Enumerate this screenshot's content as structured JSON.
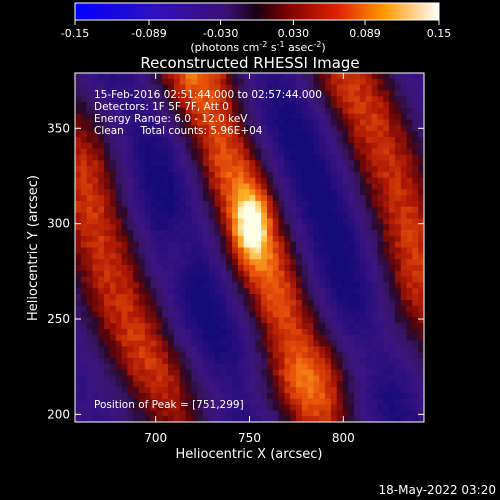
{
  "chart_data": {
    "type": "heatmap",
    "title": "Reconstructed RHESSI Image",
    "xlabel": "Heliocentric X (arcsec)",
    "ylabel": "Heliocentric Y (arcsec)",
    "xlim": [
      657,
      843
    ],
    "ylim": [
      196,
      379
    ],
    "x_ticks": [
      700,
      750,
      800
    ],
    "y_ticks": [
      200,
      250,
      300,
      350
    ],
    "colorbar": {
      "min": -0.15,
      "max": 0.15,
      "ticks": [
        "-0.15",
        "-0.089",
        "-0.030",
        "0.030",
        "0.089",
        "0.15"
      ],
      "unit": "(photons cm",
      "unit_parts": [
        "(photons cm",
        "-2",
        " s",
        "-1",
        " asec",
        "-2",
        ")"
      ]
    },
    "annotations": [
      "15-Feb-2016 02:51:44.000 to 02:57:44.000",
      "Detectors: 1F 5F 7F, Att 0",
      "Energy Range: 6.0 - 12.0 keV",
      "Clean     Total counts: 5.96E+04"
    ],
    "peak_label": "Position of Peak = [751,299]",
    "peak": [
      751,
      299
    ],
    "timestamp": "18-May-2022 03:20"
  }
}
